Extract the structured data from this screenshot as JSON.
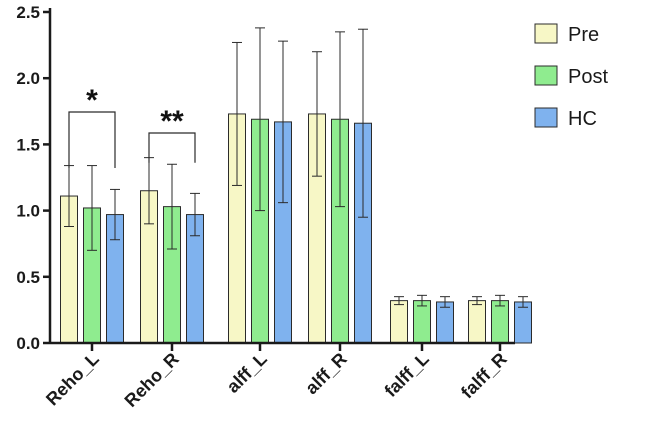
{
  "chart_data": {
    "type": "bar",
    "categories": [
      "Reho_L",
      "Reho_R",
      "alff_L",
      "alff_R",
      "falff_L",
      "falff_R"
    ],
    "series": [
      {
        "name": "Pre",
        "color": "#f7f7c6",
        "values": [
          1.11,
          1.15,
          1.73,
          1.73,
          0.32,
          0.32
        ],
        "errors": [
          0.23,
          0.25,
          0.54,
          0.47,
          0.03,
          0.03
        ]
      },
      {
        "name": "Post",
        "color": "#8fec8f",
        "values": [
          1.02,
          1.03,
          1.69,
          1.69,
          0.32,
          0.32
        ],
        "errors": [
          0.32,
          0.32,
          0.69,
          0.66,
          0.04,
          0.04
        ]
      },
      {
        "name": "HC",
        "color": "#7fb2ee",
        "values": [
          0.97,
          0.97,
          1.67,
          1.66,
          0.31,
          0.31
        ],
        "errors": [
          0.19,
          0.16,
          0.61,
          0.71,
          0.04,
          0.04
        ]
      }
    ],
    "ylim": [
      0,
      2.5
    ],
    "yticks": [
      "0.0",
      "0.5",
      "1.0",
      "1.5",
      "2.0",
      "2.5"
    ],
    "title": "",
    "xlabel": "",
    "ylabel": "",
    "legend_position": "top-right",
    "grid": false,
    "annotations": [
      {
        "category": "Reho_L",
        "from_series": "Pre",
        "to_series": "HC",
        "text": "*"
      },
      {
        "category": "Reho_R",
        "from_series": "Pre",
        "to_series": "HC",
        "text": "**"
      }
    ]
  }
}
